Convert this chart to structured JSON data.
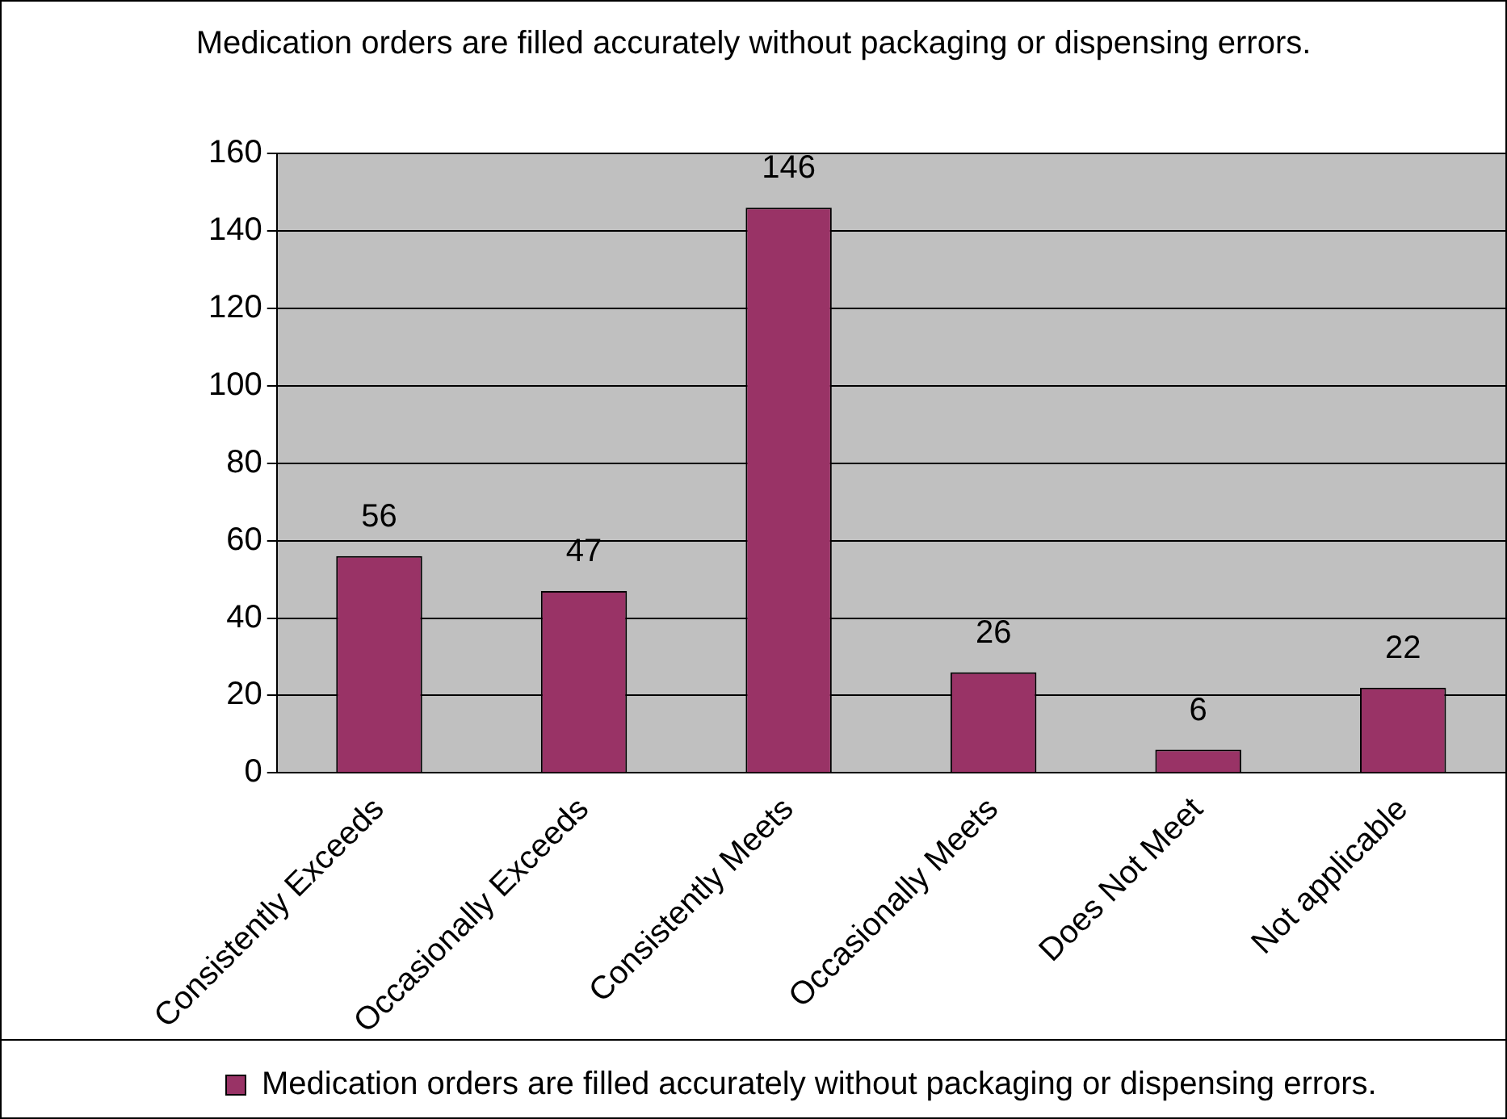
{
  "chart_data": {
    "type": "bar",
    "title": "Medication orders are filled accurately without packaging or dispensing errors.",
    "categories": [
      "Consistently Exceeds",
      "Occasionally Exceeds",
      "Consistently Meets",
      "Occasionally Meets",
      "Does Not Meet",
      "Not applicable"
    ],
    "series": [
      {
        "name": "Medication orders are filled accurately without packaging or dispensing errors.",
        "color": "#993366",
        "values": [
          56,
          47,
          146,
          26,
          6,
          22
        ]
      }
    ],
    "ylim": [
      0,
      160
    ],
    "yticks": [
      0,
      20,
      40,
      60,
      80,
      100,
      120,
      140,
      160
    ],
    "grid": "y",
    "legend": "bottom",
    "data_labels": true
  }
}
